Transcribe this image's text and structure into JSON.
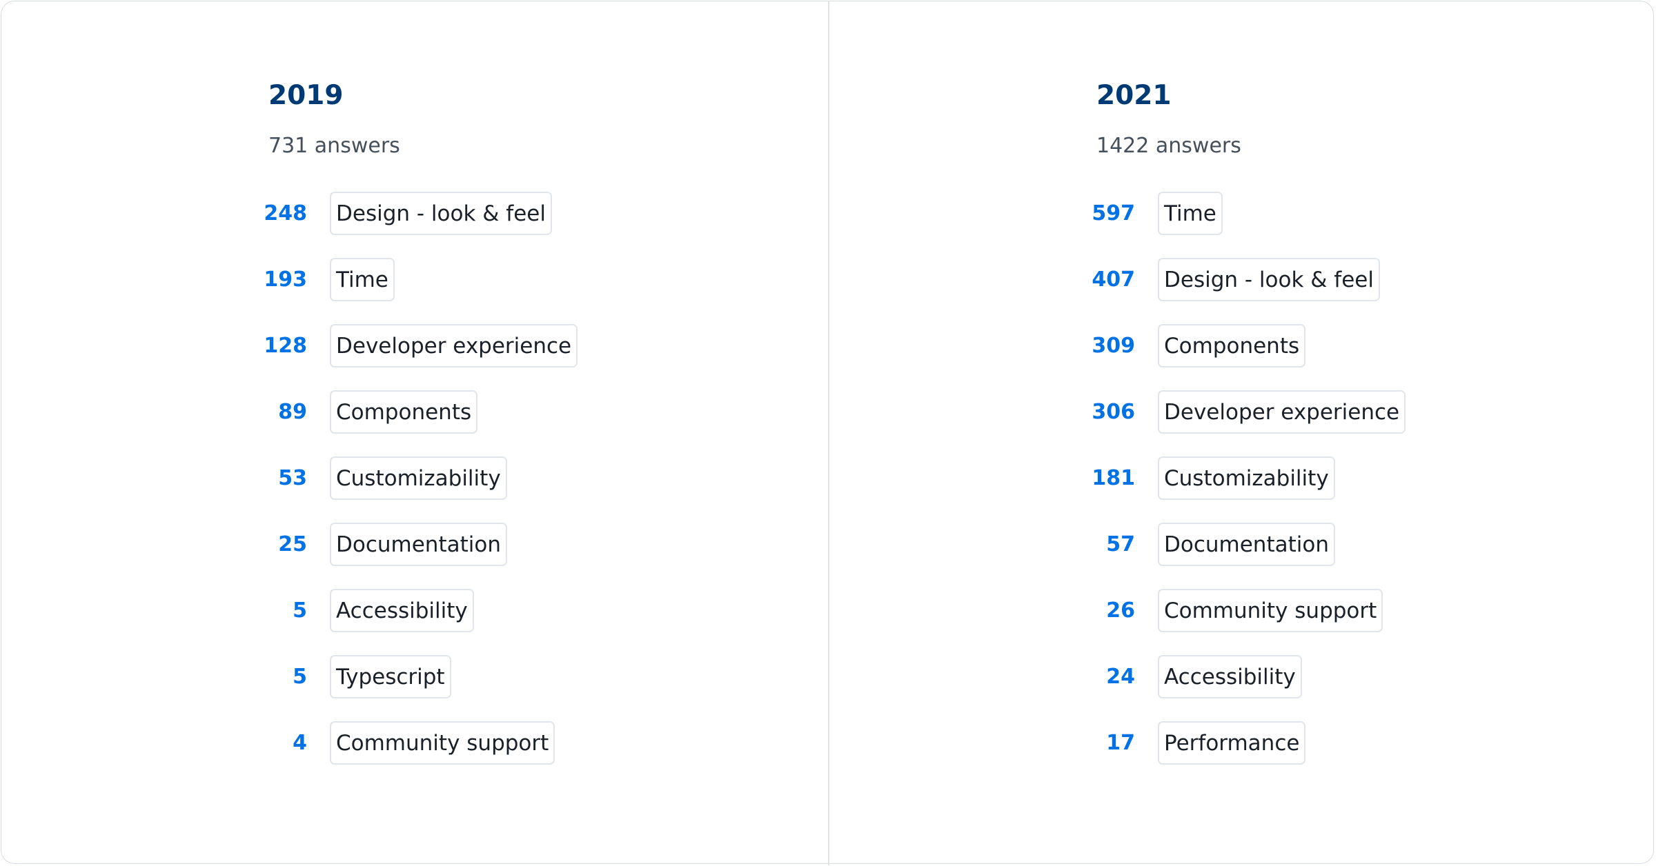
{
  "columns": [
    {
      "year": "2019",
      "answers": "731 answers",
      "items": [
        {
          "count": "248",
          "label": "Design - look & feel"
        },
        {
          "count": "193",
          "label": "Time"
        },
        {
          "count": "128",
          "label": "Developer experience"
        },
        {
          "count": "89",
          "label": "Components"
        },
        {
          "count": "53",
          "label": "Customizability"
        },
        {
          "count": "25",
          "label": "Documentation"
        },
        {
          "count": "5",
          "label": "Accessibility"
        },
        {
          "count": "5",
          "label": "Typescript"
        },
        {
          "count": "4",
          "label": "Community support"
        }
      ]
    },
    {
      "year": "2021",
      "answers": "1422 answers",
      "items": [
        {
          "count": "597",
          "label": "Time"
        },
        {
          "count": "407",
          "label": "Design - look & feel"
        },
        {
          "count": "309",
          "label": "Components"
        },
        {
          "count": "306",
          "label": "Developer experience"
        },
        {
          "count": "181",
          "label": "Customizability"
        },
        {
          "count": "57",
          "label": "Documentation"
        },
        {
          "count": "26",
          "label": "Community support"
        },
        {
          "count": "24",
          "label": "Accessibility"
        },
        {
          "count": "17",
          "label": "Performance"
        }
      ]
    }
  ],
  "colors": {
    "title": "#003a75",
    "count": "#0072e5",
    "subtitle": "#46505a",
    "label": "#1a2027",
    "tag_border": "#e2e6ea"
  }
}
